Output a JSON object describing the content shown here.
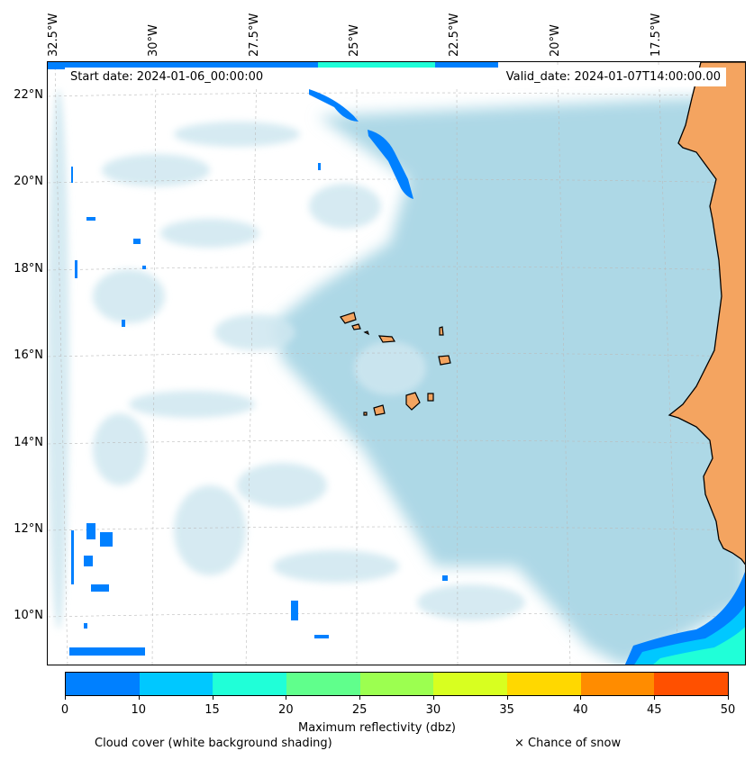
{
  "map": {
    "longitude_labels": [
      "32.5°W",
      "30°W",
      "27.5°W",
      "25°W",
      "22.5°W",
      "20°W",
      "17.5°W"
    ],
    "latitude_labels": [
      "22°N",
      "20°N",
      "18°N",
      "16°N",
      "14°N",
      "12°N",
      "10°N"
    ],
    "start_date": "Start date: 2024-01-06_00:00:00",
    "valid_date": "Valid_date: 2024-01-07T14:00:00.00",
    "colors": {
      "ocean_cloud": "#add8e6",
      "land": "#f4a460",
      "coastline": "#000000"
    }
  },
  "colorbar": {
    "title": "Maximum reflectivity (dbz)",
    "ticks": [
      "0",
      "10",
      "15",
      "20",
      "25",
      "30",
      "35",
      "40",
      "45",
      "50"
    ],
    "colors": [
      "#0080ff",
      "#00c8ff",
      "#20ffd8",
      "#60ff8c",
      "#9cff50",
      "#d8ff20",
      "#ffd800",
      "#ff8c00",
      "#ff5000"
    ]
  },
  "legend": {
    "cloud_cover": "Cloud cover (white background shading)",
    "snow": "× Chance of snow"
  }
}
